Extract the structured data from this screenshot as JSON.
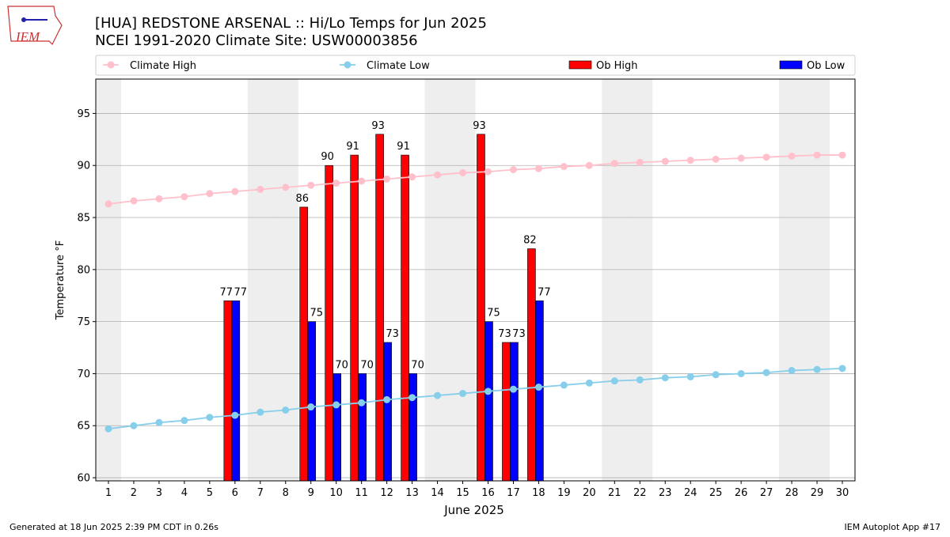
{
  "chart_data": {
    "type": "bar",
    "logo_text": "IEM",
    "title": "[HUA] REDSTONE ARSENAL :: Hi/Lo Temps for Jun 2025",
    "subtitle": "NCEI 1991-2020 Climate Site: USW00003856",
    "y_label": "Temperature $^\\circ$F",
    "y_label_display": "Temperature °F",
    "x_label": "June 2025",
    "footer_left": "Generated at 18 Jun 2025 2:39 PM CDT in 0.26s",
    "footer_right": "IEM Autoplot App #17",
    "x": [
      1,
      2,
      3,
      4,
      5,
      6,
      7,
      8,
      9,
      10,
      11,
      12,
      13,
      14,
      15,
      16,
      17,
      18,
      19,
      20,
      21,
      22,
      23,
      24,
      25,
      26,
      27,
      28,
      29,
      30
    ],
    "xlim": [
      0.5,
      30.5
    ],
    "xticks": [
      1,
      2,
      3,
      4,
      5,
      6,
      7,
      8,
      9,
      10,
      11,
      12,
      13,
      14,
      15,
      16,
      17,
      18,
      19,
      20,
      21,
      22,
      23,
      24,
      25,
      26,
      27,
      28,
      29,
      30
    ],
    "ylim": [
      59.7,
      98.3
    ],
    "yticks": [
      60,
      65,
      70,
      75,
      80,
      85,
      90,
      95
    ],
    "grid": true,
    "shaded_days": [
      1,
      7,
      8,
      14,
      15,
      21,
      22,
      28,
      29
    ],
    "shade_color": "#eeeeee",
    "series": [
      {
        "name": "Climate High",
        "type": "line",
        "color": "#ffc0cb",
        "values": [
          86.3,
          86.6,
          86.8,
          87.0,
          87.3,
          87.5,
          87.7,
          87.9,
          88.1,
          88.3,
          88.5,
          88.7,
          88.9,
          89.1,
          89.3,
          89.4,
          89.6,
          89.7,
          89.9,
          90.0,
          90.2,
          90.3,
          90.4,
          90.5,
          90.6,
          90.7,
          90.8,
          90.9,
          91.0,
          91.0
        ]
      },
      {
        "name": "Climate Low",
        "type": "line",
        "color": "#87ceeb",
        "values": [
          64.7,
          65.0,
          65.3,
          65.5,
          65.8,
          66.0,
          66.3,
          66.5,
          66.8,
          67.0,
          67.2,
          67.5,
          67.7,
          67.9,
          68.1,
          68.3,
          68.5,
          68.7,
          68.9,
          69.1,
          69.3,
          69.4,
          69.6,
          69.7,
          69.9,
          70.0,
          70.1,
          70.3,
          70.4,
          70.5
        ]
      },
      {
        "name": "Ob High",
        "type": "bar",
        "color": "#ff0000",
        "values": [
          null,
          null,
          null,
          null,
          null,
          77,
          null,
          null,
          86,
          90,
          91,
          93,
          91,
          null,
          null,
          93,
          73,
          82,
          null,
          null,
          null,
          null,
          null,
          null,
          null,
          null,
          null,
          null,
          null,
          null
        ]
      },
      {
        "name": "Ob Low",
        "type": "bar",
        "color": "#0000ff",
        "values": [
          null,
          null,
          null,
          null,
          null,
          77,
          null,
          null,
          75,
          70,
          70,
          73,
          70,
          null,
          null,
          75,
          73,
          77,
          null,
          null,
          null,
          null,
          null,
          null,
          null,
          null,
          null,
          null,
          null,
          null
        ]
      }
    ]
  }
}
